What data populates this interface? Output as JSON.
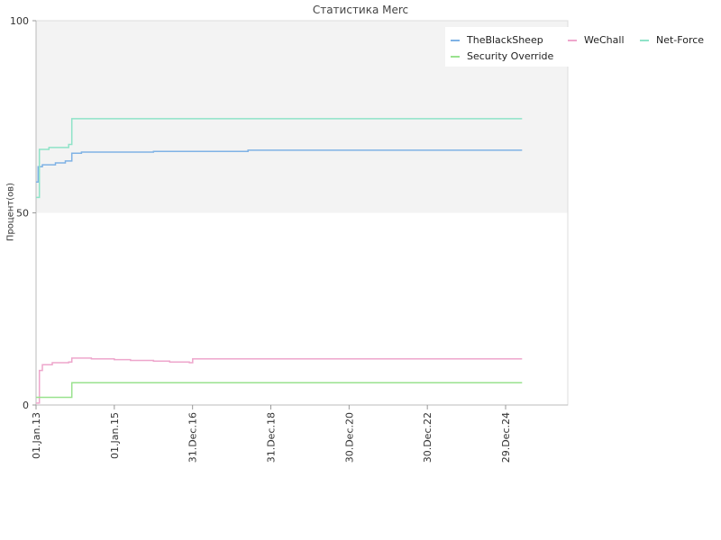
{
  "chart_data": {
    "type": "line",
    "title": "Статистика Merc",
    "xlabel": "",
    "ylabel": "Процент(ов)",
    "ylim": [
      0,
      100
    ],
    "yticks": [
      0,
      50,
      100
    ],
    "xlim": [
      "2013-01-01",
      "2026-08-01"
    ],
    "xticks": [
      {
        "date": "2013-01-01",
        "label": "01.Jan.13"
      },
      {
        "date": "2015-01-01",
        "label": "01.Jan.15"
      },
      {
        "date": "2016-12-31",
        "label": "31.Dec.16"
      },
      {
        "date": "2018-12-31",
        "label": "31.Dec.18"
      },
      {
        "date": "2020-12-30",
        "label": "30.Dec.20"
      },
      {
        "date": "2022-12-30",
        "label": "30.Dec.22"
      },
      {
        "date": "2024-12-29",
        "label": "29.Dec.24"
      }
    ],
    "grid": false,
    "legend_position": "top-right",
    "series": [
      {
        "name": "TheBlackSheep",
        "color": "#7fb2e5",
        "points": [
          [
            "2013-01-01",
            58
          ],
          [
            "2013-01-20",
            62
          ],
          [
            "2013-03-01",
            62.5
          ],
          [
            "2013-07-01",
            63
          ],
          [
            "2013-10-01",
            63.5
          ],
          [
            "2013-12-01",
            65.5
          ],
          [
            "2014-03-01",
            65.8
          ],
          [
            "2015-06-01",
            65.8
          ],
          [
            "2016-01-01",
            66
          ],
          [
            "2017-02-01",
            66
          ],
          [
            "2018-06-01",
            66.3
          ],
          [
            "2025-06-01",
            66.3
          ]
        ]
      },
      {
        "name": "WeChall",
        "color": "#eea6cc",
        "points": [
          [
            "2013-01-01",
            0.5
          ],
          [
            "2013-02-01",
            9
          ],
          [
            "2013-03-01",
            10.5
          ],
          [
            "2013-06-01",
            11
          ],
          [
            "2013-11-01",
            11.2
          ],
          [
            "2013-12-01",
            12.2
          ],
          [
            "2014-06-01",
            12
          ],
          [
            "2015-01-01",
            11.8
          ],
          [
            "2015-06-01",
            11.6
          ],
          [
            "2016-01-01",
            11.4
          ],
          [
            "2016-06-01",
            11.2
          ],
          [
            "2016-12-01",
            11
          ],
          [
            "2017-01-01",
            12
          ],
          [
            "2025-06-01",
            12
          ]
        ]
      },
      {
        "name": "Net-Force",
        "color": "#8fe3c8",
        "points": [
          [
            "2013-01-01",
            54
          ],
          [
            "2013-02-01",
            66.5
          ],
          [
            "2013-05-01",
            67
          ],
          [
            "2013-11-01",
            67.8
          ],
          [
            "2013-12-01",
            74.5
          ],
          [
            "2025-06-01",
            74.5
          ]
        ]
      },
      {
        "name": "Security Override",
        "color": "#99e28e",
        "points": [
          [
            "2013-01-01",
            2
          ],
          [
            "2013-11-01",
            2
          ],
          [
            "2013-12-01",
            5.8
          ],
          [
            "2025-06-01",
            5.8
          ]
        ]
      }
    ],
    "legend_order": [
      "TheBlackSheep",
      "WeChall",
      "Net-Force",
      "Security Override"
    ],
    "background": {
      "band_color": "#f3f3f3",
      "band_range": [
        50,
        100
      ]
    }
  }
}
